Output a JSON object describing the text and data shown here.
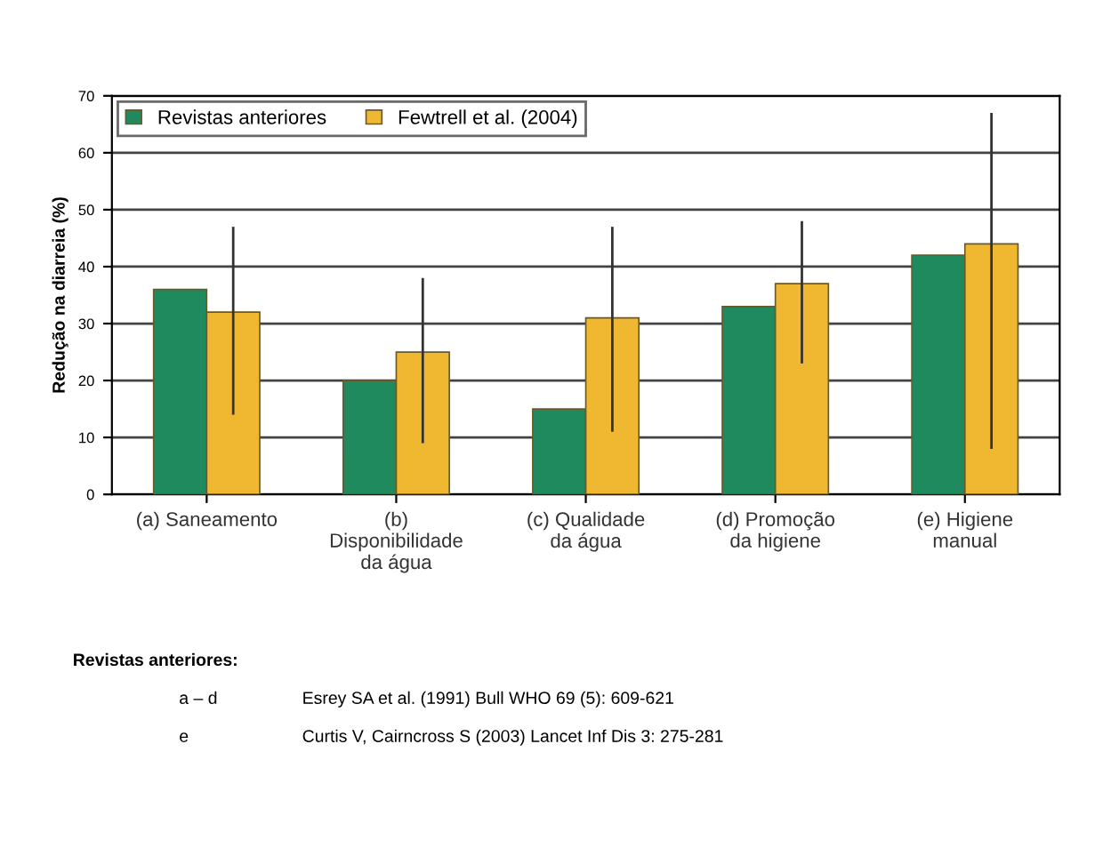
{
  "chart_data": {
    "type": "bar",
    "ylabel": "Redução na diarreia (%)",
    "categories": [
      "(a) Saneamento",
      "(b)\nDisponibilidade\nda água",
      "(c) Qualidade\nda água",
      "(d) Promoção\nda higiene",
      "(e) Higiene\nmanual"
    ],
    "series": [
      {
        "name": "Revistas anteriores",
        "color": "#1e8a5e",
        "values": [
          36,
          20,
          15,
          33,
          42
        ]
      },
      {
        "name": "Fewtrell et al. (2004)",
        "color": "#f0b830",
        "values": [
          32,
          25,
          31,
          37,
          44
        ],
        "errors": [
          [
            14,
            47
          ],
          [
            9,
            38
          ],
          [
            11,
            47
          ],
          [
            23,
            48
          ],
          [
            8,
            67
          ]
        ]
      }
    ],
    "ylim": [
      0,
      70
    ],
    "yticks": [
      0,
      10,
      20,
      30,
      40,
      50,
      60,
      70
    ],
    "grid": "y",
    "legend": "top left",
    "annotations": [
      "Revistas anteriores:",
      "a – d\tEsrey SA et al. (1991) Bull WHO 69 (5): 609-621",
      "e\tCurtis V, Cairncross S (2003) Lancet Inf Dis 3: 275-281"
    ]
  }
}
